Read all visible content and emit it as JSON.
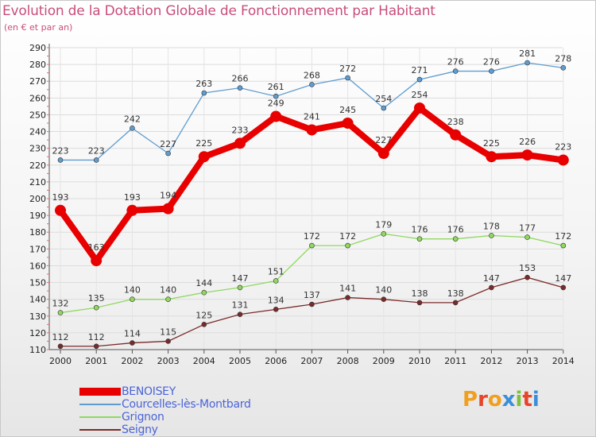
{
  "title": "Evolution de la Dotation Globale de Fonctionnement par Habitant",
  "subtitle": "(en € et par an)",
  "logo": {
    "text": "Proxiti",
    "letters": [
      {
        "ch": "P",
        "color": "#f0a020"
      },
      {
        "ch": "r",
        "color": "#e8442a"
      },
      {
        "ch": "o",
        "color": "#f0a020"
      },
      {
        "ch": "x",
        "color": "#3a8fd8"
      },
      {
        "ch": "i",
        "color": "#7dc23a"
      },
      {
        "ch": "t",
        "color": "#e8442a"
      },
      {
        "ch": "i",
        "color": "#3a8fd8"
      }
    ]
  },
  "chart_data": {
    "type": "line",
    "title": "Evolution de la Dotation Globale de Fonctionnement par Habitant",
    "subtitle": "(en € et par an)",
    "xlabel": "",
    "ylabel": "",
    "ylim": [
      110,
      290
    ],
    "yticks": [
      110,
      120,
      130,
      140,
      150,
      160,
      170,
      180,
      190,
      200,
      210,
      220,
      230,
      240,
      250,
      260,
      270,
      280,
      290
    ],
    "x": [
      "2000",
      "2001",
      "2002",
      "2003",
      "2004",
      "2005",
      "2006",
      "2007",
      "2008",
      "2009",
      "2010",
      "2011",
      "2012",
      "2013",
      "2014"
    ],
    "grid": true,
    "legend_position": "bottom-left",
    "series": [
      {
        "name": "BENOISEY",
        "color": "#e80000",
        "emphasis": true,
        "values": [
          193,
          163,
          193,
          194,
          225,
          233,
          249,
          241,
          245,
          227,
          254,
          238,
          225,
          226,
          223
        ]
      },
      {
        "name": "Courcelles-lès-Montbard",
        "color": "#5f9cd0",
        "emphasis": false,
        "values": [
          223,
          223,
          242,
          227,
          263,
          266,
          261,
          268,
          272,
          254,
          271,
          276,
          276,
          281,
          278
        ]
      },
      {
        "name": "Grignon",
        "color": "#90d860",
        "emphasis": false,
        "values": [
          132,
          135,
          140,
          140,
          144,
          147,
          151,
          172,
          172,
          179,
          176,
          176,
          178,
          177,
          172
        ]
      },
      {
        "name": "Seigny",
        "color": "#7a2a2a",
        "emphasis": false,
        "values": [
          112,
          112,
          114,
          115,
          125,
          131,
          134,
          137,
          141,
          140,
          138,
          138,
          147,
          153,
          147
        ]
      }
    ]
  }
}
